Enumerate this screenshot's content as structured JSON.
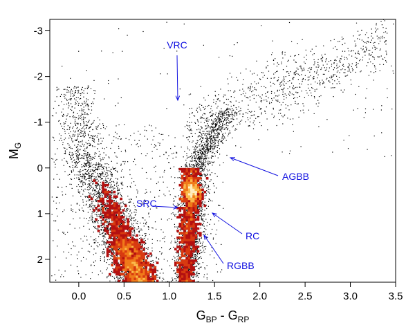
{
  "chart_data": {
    "type": "scatter",
    "xlabel_main": "G",
    "xlabel_sub1": "BP",
    "xlabel_mid": " - G",
    "xlabel_sub2": "RP",
    "ylabel_main": "M",
    "ylabel_sub": "G",
    "xlim": [
      -0.32,
      3.5
    ],
    "ylim": [
      2.5,
      -3.25
    ],
    "y_inverted": true,
    "xticks": [
      "0.0",
      "0.5",
      "1.0",
      "1.5",
      "2.0",
      "2.5",
      "3.0",
      "3.5"
    ],
    "xtick_values": [
      0.0,
      0.5,
      1.0,
      1.5,
      2.0,
      2.5,
      3.0,
      3.5
    ],
    "yticks": [
      "-3",
      "-2",
      "-1",
      "0",
      "1",
      "2"
    ],
    "ytick_values": [
      -3,
      -2,
      -1,
      0,
      1,
      2
    ],
    "grid": false,
    "annotation_color": "#1010e0",
    "point_color": "#000000",
    "density_colors": [
      "#7f0000",
      "#b41010",
      "#d83a10",
      "#f07a1a",
      "#fbb94a",
      "#ffeec0"
    ],
    "annotations": [
      {
        "label": "VRC",
        "text_x": 1.1,
        "text_y": -2.7,
        "arrow_from": [
          1.1,
          -2.5
        ],
        "arrow_to": [
          1.12,
          -1.45
        ]
      },
      {
        "label": "AGBB",
        "text_x": 2.25,
        "text_y": -0.2,
        "arrow_from": [
          2.2,
          -0.2
        ],
        "arrow_to": [
          1.67,
          0.2
        ]
      },
      {
        "label": "SRC",
        "text_x": 0.63,
        "text_y": -0.8,
        "arrow_from": [
          0.85,
          -0.85
        ],
        "arrow_to": [
          1.05,
          -0.9
        ]
      },
      {
        "label": "RC",
        "text_x": 1.8,
        "text_y": -1.5,
        "arrow_from": [
          1.72,
          -1.45
        ],
        "arrow_to": [
          1.5,
          -1.0
        ]
      },
      {
        "label": "RGBB",
        "text_x": 1.64,
        "text_y": -2.2,
        "arrow_from": [
          1.6,
          -2.1
        ],
        "arrow_to": [
          1.4,
          -1.5
        ]
      }
    ]
  }
}
